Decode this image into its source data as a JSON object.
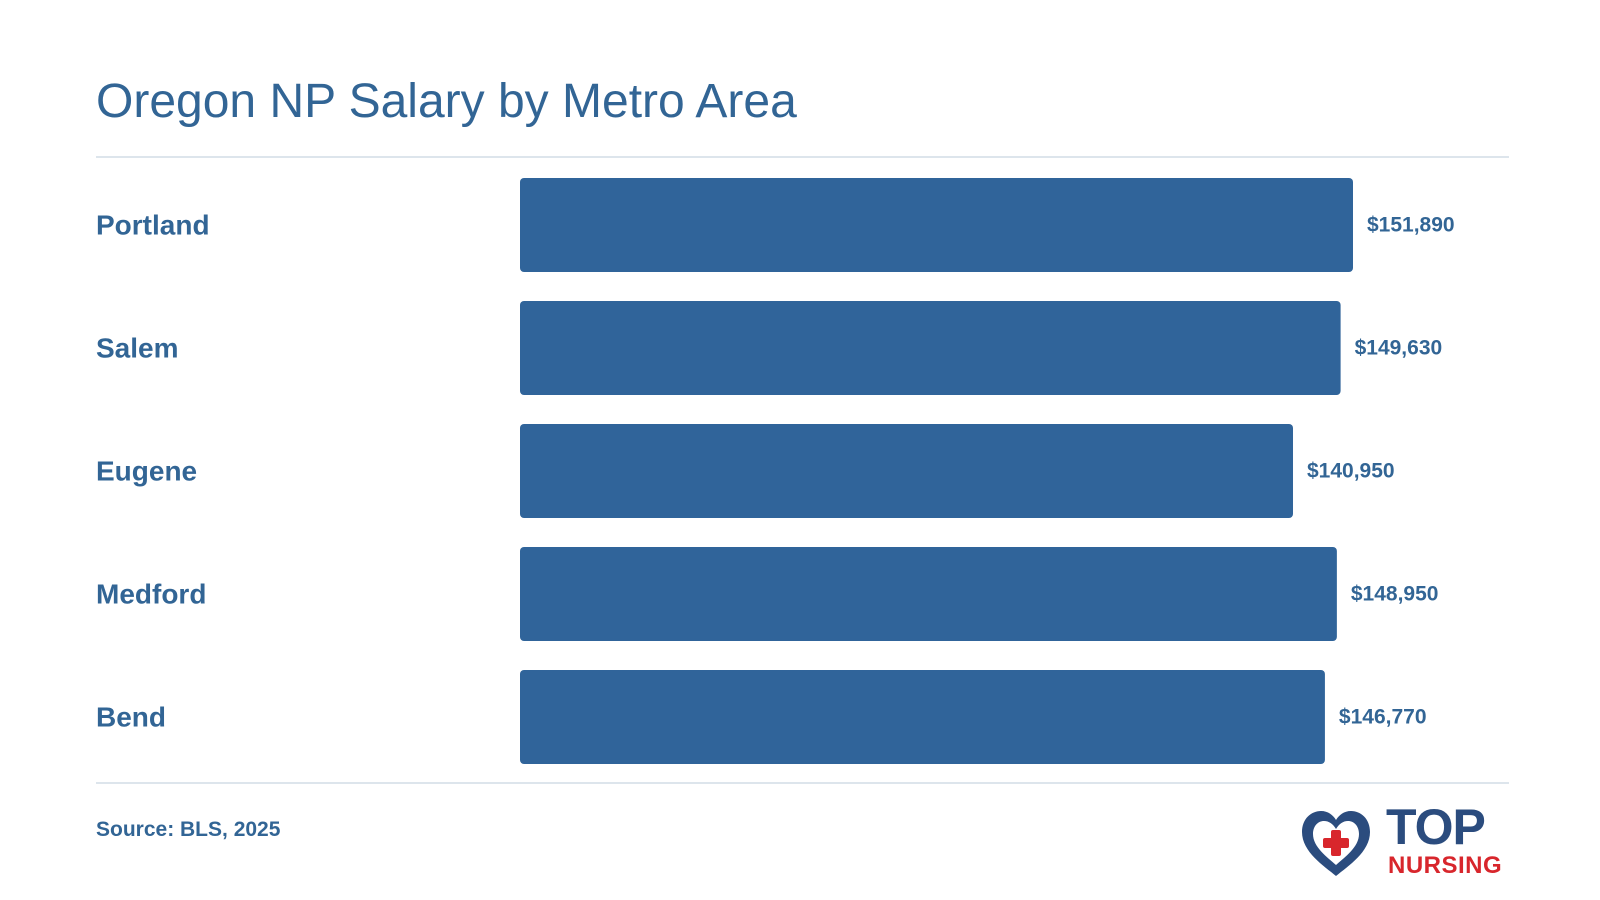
{
  "chart_data": {
    "type": "bar",
    "orientation": "horizontal",
    "title": "Oregon NP Salary by Metro Area",
    "categories": [
      "Portland",
      "Salem",
      "Eugene",
      "Medford",
      "Bend"
    ],
    "values": [
      151890,
      149630,
      140950,
      148950,
      146770
    ],
    "value_labels": [
      "$151,890",
      "$149,630",
      "$140,950",
      "$148,950",
      "$146,770"
    ],
    "xlim": [
      0,
      151890
    ],
    "grid": false,
    "bar_color": "#30649a",
    "label_color": "#326595"
  },
  "footer": {
    "source": "Source: BLS, 2025"
  },
  "logo": {
    "word_top": "TOP",
    "word_bottom": "NURSING",
    "icon": "heart-cross-icon",
    "colors": {
      "navy": "#2b4c7e",
      "red": "#d8262c"
    }
  }
}
